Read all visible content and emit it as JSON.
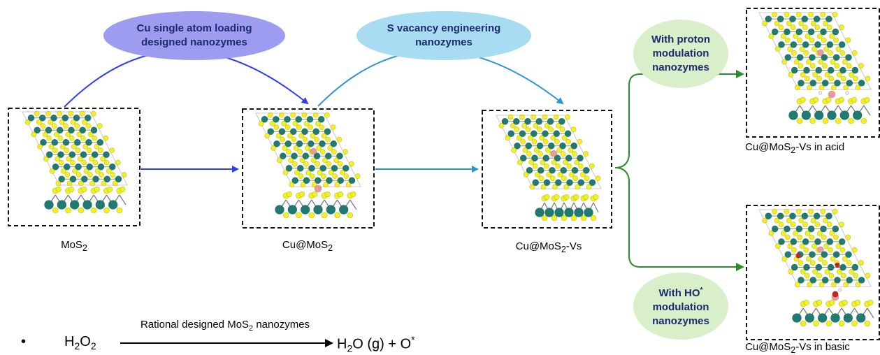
{
  "bubbles": {
    "cu_loading": {
      "line1": "Cu single atom loading",
      "line2": "designed nanozymes",
      "fill": "#9d9cf0"
    },
    "s_vacancy": {
      "line1": "S vacancy engineering",
      "line2": "nanozymes",
      "fill": "#a8dcf2"
    },
    "proton": {
      "line1": "With proton",
      "line2": "modulation",
      "line3": "nanozymes",
      "fill": "#d9efc9"
    },
    "ho": {
      "line1": "With HO",
      "line1_sup": "*",
      "line2": "modulation",
      "line3": "nanozymes",
      "fill": "#d9efc9"
    }
  },
  "structures": {
    "mos2": {
      "label_main": "MoS",
      "label_sub": "2",
      "label_tail": ""
    },
    "cu_mos2": {
      "label_main": "Cu@MoS",
      "label_sub": "2",
      "label_tail": ""
    },
    "cu_mos2_vs": {
      "label_main": "Cu@MoS",
      "label_sub": "2",
      "label_tail": "-Vs"
    },
    "acid": {
      "label_main": "Cu@MoS",
      "label_sub": "2",
      "label_tail": "-Vs in acid"
    },
    "basic": {
      "label_main": "Cu@MoS",
      "label_sub": "2",
      "label_tail": "-Vs in basic"
    }
  },
  "equation": {
    "bullet": "•",
    "reactant_main": "H",
    "reactant_sub1": "2",
    "reactant_mid": "O",
    "reactant_sub2": "2",
    "arrow_label_main": "Rational designed MoS",
    "arrow_label_sub": "2",
    "arrow_label_tail": " nanozymes",
    "product_main": "H",
    "product_sub": "2",
    "product_tail": "O (g) + O",
    "product_sup": "*"
  },
  "colors": {
    "mo_atom": "#1f7a72",
    "s_atom": "#f2f21a",
    "cu_atom": "#e89a9a",
    "o_atom": "#cc2222",
    "h_atom": "#e8e8e8",
    "arrow_blue": "#2f3ff0",
    "arrow_cyan": "#2a95d6",
    "arrow_green": "#2e8b2e"
  }
}
